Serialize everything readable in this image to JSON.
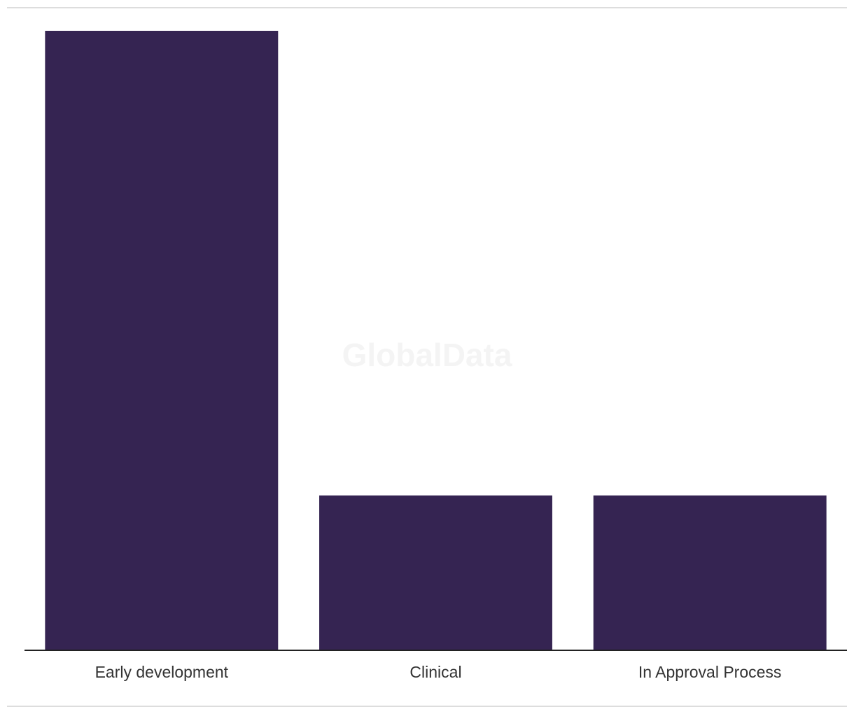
{
  "chart_data": {
    "type": "bar",
    "watermark": "GlobalData",
    "categories": [
      "Early development",
      "Clinical",
      "In Approval Process"
    ],
    "values": [
      4,
      1,
      1
    ],
    "color": "#352452",
    "ylim": [
      0,
      4
    ]
  }
}
